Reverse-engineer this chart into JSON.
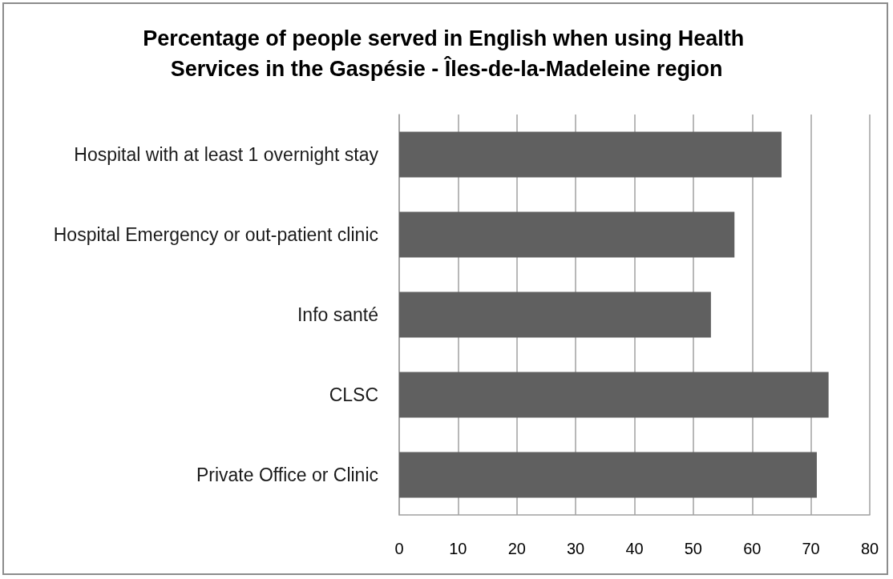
{
  "chart_data": {
    "type": "bar",
    "orientation": "horizontal",
    "title": "Percentage of people served in English when using Health Services in the Gaspésie - Îles-de-la-Madeleine region",
    "categories": [
      "Hospital with at least 1 overnight stay",
      "Hospital Emergency or out-patient clinic",
      "Info santé",
      "CLSC",
      "Private Office or Clinic"
    ],
    "values": [
      65,
      57,
      53,
      73,
      71
    ],
    "color": "#606060",
    "xlim": [
      0,
      80
    ],
    "xticks": [
      0,
      10,
      20,
      30,
      40,
      50,
      60,
      70,
      80
    ],
    "grid": "x"
  }
}
